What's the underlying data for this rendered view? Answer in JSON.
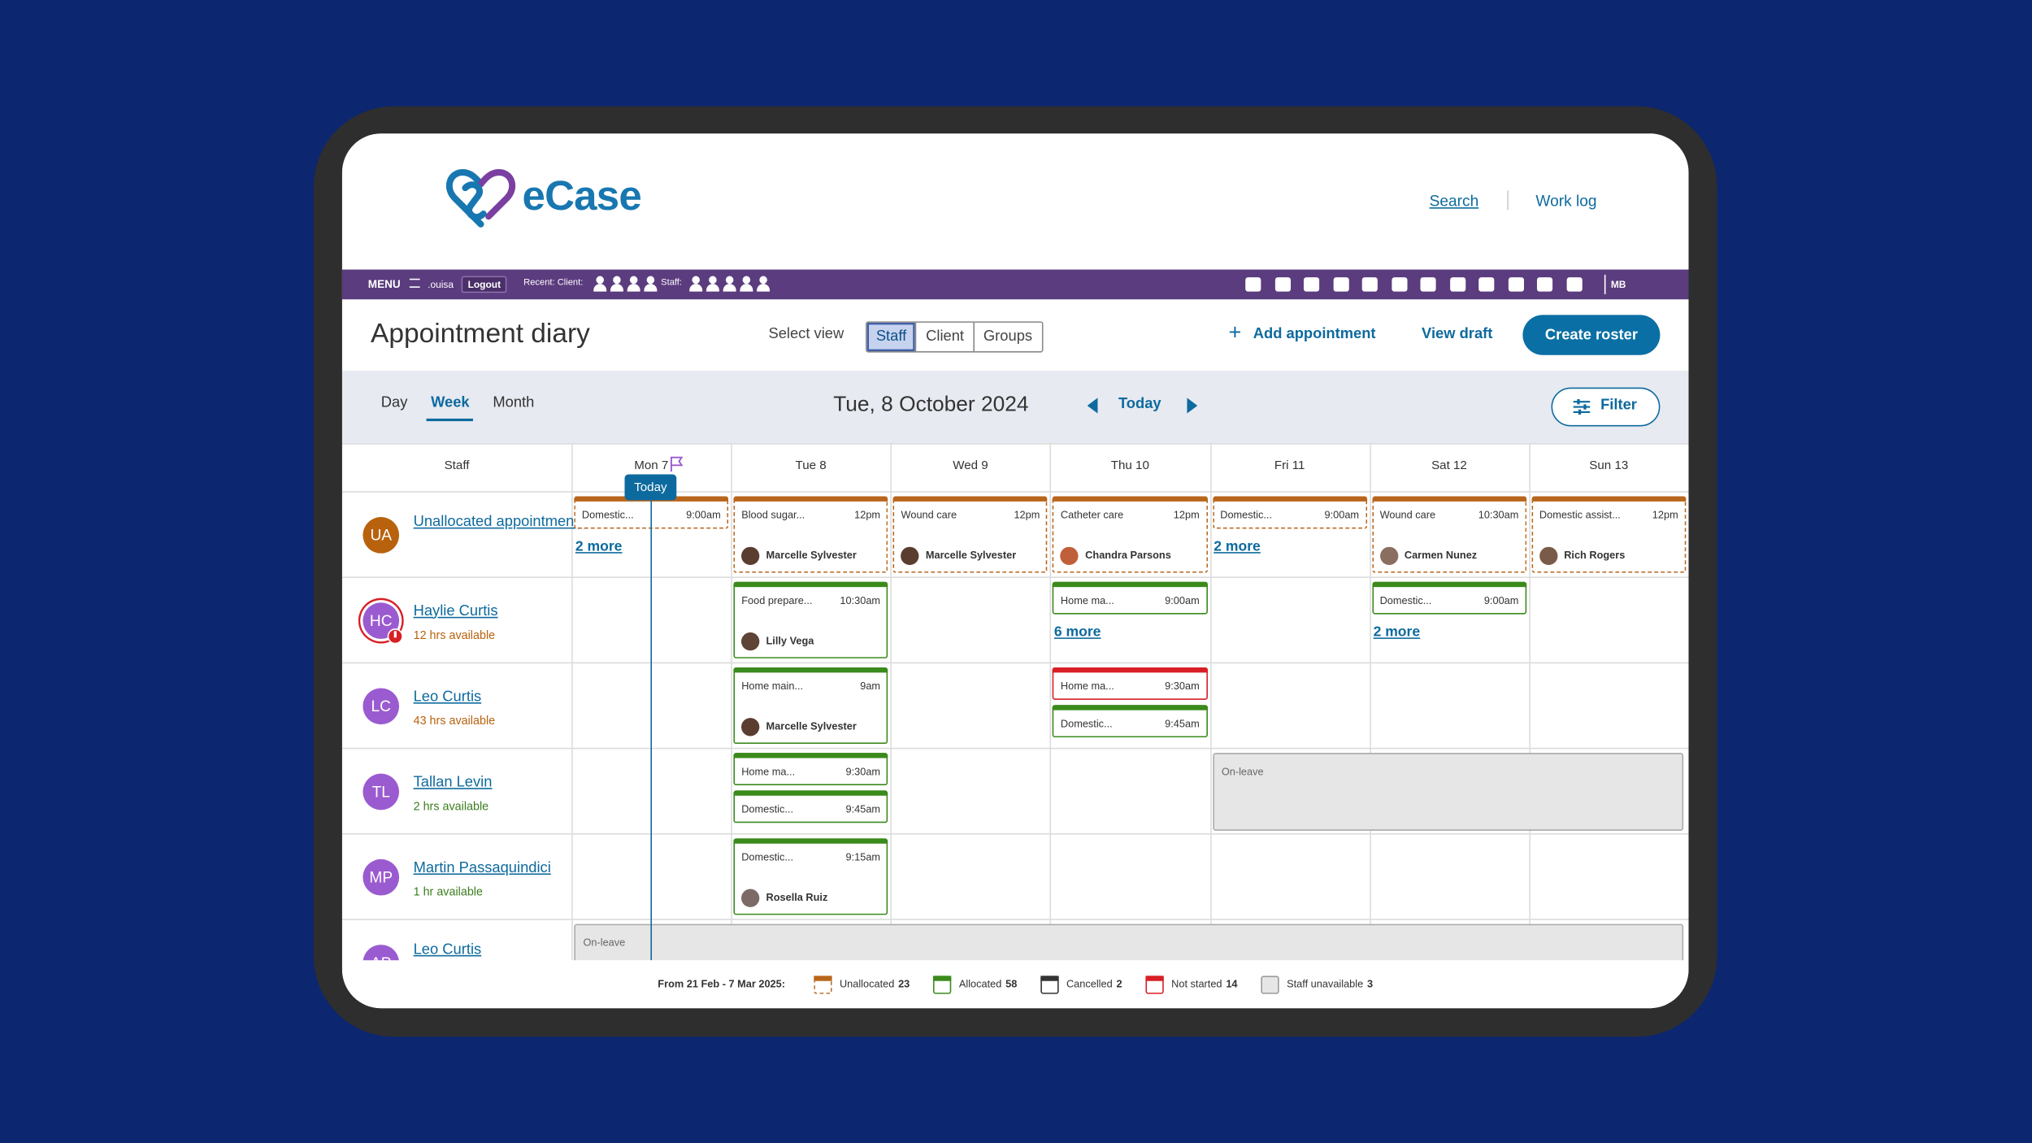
{
  "header": {
    "logo": "eCase",
    "links": [
      "Search",
      "Work log"
    ]
  },
  "menubar": {
    "menu": "MENU",
    "user": ".ouisa",
    "logout": "Logout",
    "recent_client": "Recent: Client:",
    "staff": "Staff:",
    "initials": "MB"
  },
  "toolbar": {
    "title": "Appointment diary",
    "select_view": "Select view",
    "views": [
      {
        "label": "Staff",
        "selected": true
      },
      {
        "label": "Client"
      },
      {
        "label": "Groups"
      }
    ],
    "add": "Add appointment",
    "view_draft": "View draft",
    "create": "Create roster"
  },
  "nav": {
    "modes": [
      {
        "label": "Day"
      },
      {
        "label": "Week",
        "selected": true
      },
      {
        "label": "Month"
      }
    ],
    "date": "Tue, 8 October 2024",
    "today": "Today",
    "filter": "Filter"
  },
  "status_colors": {
    "unallocated": "#b8661c",
    "allocated": "#3b8a1c",
    "cancelled": "#333333",
    "notstarted": "#d81f26",
    "unavailable": "#9a9a9a"
  },
  "diary": {
    "staff_header": "Staff",
    "today_marker": "Today",
    "days": [
      {
        "label": "Mon 7",
        "today": true
      },
      {
        "label": "Tue 8"
      },
      {
        "label": "Wed 9"
      },
      {
        "label": "Thu 10"
      },
      {
        "label": "Fri 11"
      },
      {
        "label": "Sat 12"
      },
      {
        "label": "Sun 13"
      }
    ],
    "rows": [
      {
        "initials": "UA",
        "avatar_color": "#b8620e",
        "name": "Unallocated appointments",
        "cells": [
          {
            "cards": [
              {
                "title": "Domestic...",
                "time": "9:00am",
                "status": "unallocated"
              }
            ],
            "more": "2 more"
          },
          {
            "cards": [
              {
                "title": "Blood sugar...",
                "time": "12pm",
                "status": "unallocated",
                "client": "Marcelle Sylvester",
                "photo": "#5a3d30"
              }
            ]
          },
          {
            "cards": [
              {
                "title": "Wound care",
                "time": "12pm",
                "status": "unallocated",
                "client": "Marcelle Sylvester",
                "photo": "#5a3d30"
              }
            ]
          },
          {
            "cards": [
              {
                "title": "Catheter care",
                "time": "12pm",
                "status": "unallocated",
                "client": "Chandra Parsons",
                "photo": "#c0603a"
              }
            ]
          },
          {
            "cards": [
              {
                "title": "Domestic...",
                "time": "9:00am",
                "status": "unallocated"
              }
            ],
            "more": "2 more"
          },
          {
            "cards": [
              {
                "title": "Wound care",
                "time": "10:30am",
                "status": "unallocated",
                "client": "Carmen Nunez",
                "photo": "#8a6e60"
              }
            ]
          },
          {
            "cards": [
              {
                "title": "Domestic assist...",
                "time": "12pm",
                "status": "unallocated",
                "client": "Rich Rogers",
                "photo": "#7a5a48"
              }
            ]
          }
        ]
      },
      {
        "initials": "HC",
        "avatar_color": "#9b5bd0",
        "alert": true,
        "name": "Haylie Curtis",
        "availability": "12 hrs available",
        "availability_color": "#b8620e",
        "cells": [
          {
            "cards": []
          },
          {
            "cards": [
              {
                "title": "Food prepare...",
                "time": "10:30am",
                "status": "allocated",
                "client": "Lilly Vega",
                "photo": "#5d4436"
              }
            ]
          },
          {
            "cards": []
          },
          {
            "cards": [
              {
                "title": "Home ma...",
                "time": "9:00am",
                "status": "allocated"
              }
            ],
            "more": "6 more"
          },
          {
            "cards": []
          },
          {
            "cards": [
              {
                "title": "Domestic...",
                "time": "9:00am",
                "status": "allocated"
              }
            ],
            "more": "2 more"
          },
          {
            "cards": []
          }
        ]
      },
      {
        "initials": "LC",
        "avatar_color": "#9b5bd0",
        "name": "Leo Curtis",
        "availability": "43 hrs available",
        "availability_color": "#b8620e",
        "cells": [
          {
            "cards": []
          },
          {
            "cards": [
              {
                "title": "Home main...",
                "time": "9am",
                "status": "allocated",
                "client": "Marcelle Sylvester",
                "photo": "#5a3d30"
              }
            ]
          },
          {
            "cards": []
          },
          {
            "cards": [
              {
                "title": "Home ma...",
                "time": "9:30am",
                "status": "notstarted"
              },
              {
                "title": "Domestic...",
                "time": "9:45am",
                "status": "allocated"
              }
            ]
          },
          {
            "cards": []
          },
          {
            "cards": []
          },
          {
            "cards": []
          }
        ]
      },
      {
        "initials": "TL",
        "avatar_color": "#9b5bd0",
        "name": "Tallan Levin",
        "availability": "2 hrs available",
        "availability_color": "#3b7d1e",
        "leave_label": "On-leave",
        "cells": [
          {
            "cards": []
          },
          {
            "cards": [
              {
                "title": "Home ma...",
                "time": "9:30am",
                "status": "allocated"
              },
              {
                "title": "Domestic...",
                "time": "9:45am",
                "status": "allocated"
              }
            ]
          },
          {
            "cards": []
          },
          {
            "cards": []
          },
          {
            "leave": true
          },
          {
            "leave": true
          },
          {
            "leave": true
          }
        ]
      },
      {
        "initials": "MP",
        "avatar_color": "#9b5bd0",
        "name": "Martin Passaquindici",
        "availability": "1 hr available",
        "availability_color": "#3b7d1e",
        "cells": [
          {
            "cards": []
          },
          {
            "cards": [
              {
                "title": "Domestic...",
                "time": "9:15am",
                "status": "allocated",
                "client": "Rosella Ruiz",
                "photo": "#7b6a66"
              }
            ]
          },
          {
            "cards": []
          },
          {
            "cards": []
          },
          {
            "cards": []
          },
          {
            "cards": []
          },
          {
            "cards": []
          }
        ]
      },
      {
        "initials": "AP",
        "avatar_color": "#9b5bd0",
        "name": "Leo Curtis",
        "leave_label": "On-leave",
        "cells": [
          {
            "leave": true
          },
          {
            "leave": true
          },
          {
            "leave": true
          },
          {
            "leave": true
          },
          {
            "leave": true
          },
          {
            "leave": true
          },
          {
            "leave": true
          }
        ]
      }
    ]
  },
  "legend": {
    "from": "From 21 Feb - 7 Mar 2025:",
    "items": [
      {
        "label": "Unallocated",
        "count": 23,
        "status": "unallocated"
      },
      {
        "label": "Allocated",
        "count": 58,
        "status": "allocated"
      },
      {
        "label": "Cancelled",
        "count": 2,
        "status": "cancelled"
      },
      {
        "label": "Not started",
        "count": 14,
        "status": "notstarted"
      },
      {
        "label": "Staff unavailable",
        "count": 3,
        "status": "unavailable"
      }
    ]
  }
}
